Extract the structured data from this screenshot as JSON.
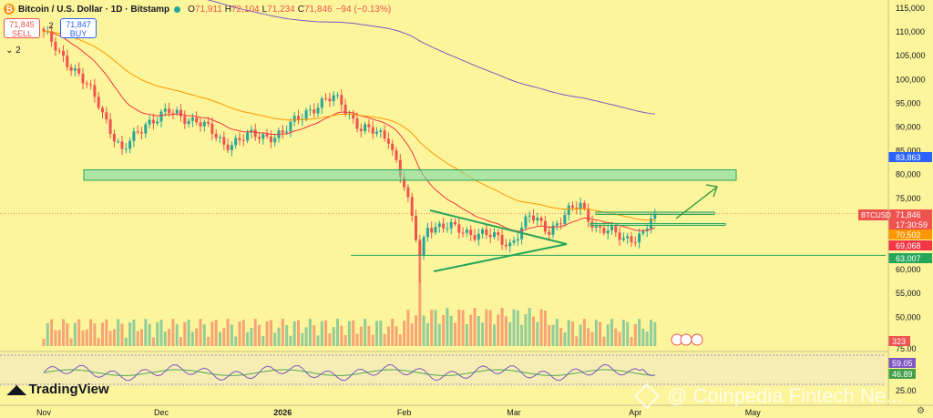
{
  "header": {
    "title": "Bitcoin / U.S. Dollar · 1D · Bitstamp",
    "open_label": "O",
    "open": "71,911",
    "high_label": "H",
    "high": "72,104",
    "low_label": "L",
    "low": "71,234",
    "close_label": "C",
    "close": "71,846",
    "change": "−94 (−0.13%)"
  },
  "trade": {
    "sell_price": "71,845",
    "sell_label": "SELL",
    "buy_price": "71,847",
    "buy_label": "BUY",
    "spread": "2",
    "collapse_count": "2"
  },
  "branding": {
    "logo_text": "TradingView",
    "watermark": "@ Coinpedia Fintech Ne..."
  },
  "colors": {
    "background": "#fdf59b",
    "up": "#26a69a",
    "down": "#ef5350",
    "ema_fast": "#f23645",
    "ema_mid": "#ff9800",
    "sma_long": "#7e57c2",
    "zone": "#a5e6bf",
    "zone_border": "#26a65b"
  },
  "chart_data": [
    {
      "type": "candlestick",
      "symbol": "BTCUSD",
      "y_axis_ticks": [
        "115,000",
        "110,000",
        "105,000",
        "100,000",
        "95,000",
        "90,000",
        "85,000",
        "80,000",
        "75,000",
        "70,000",
        "65,000",
        "60,000",
        "55,000",
        "50,000"
      ],
      "ylim": [
        50000,
        115000
      ],
      "x_axis_ticks": [
        "Nov",
        "Dec",
        "2026",
        "Feb",
        "Mar",
        "Apr",
        "May"
      ],
      "waypoints": [
        {
          "x": "Nov 1",
          "y": 109500
        },
        {
          "x": "Nov 8",
          "y": 103000
        },
        {
          "x": "Nov 15",
          "y": 95000
        },
        {
          "x": "Nov 21",
          "y": 84500
        },
        {
          "x": "Nov 27",
          "y": 91000
        },
        {
          "x": "Dec 3",
          "y": 93000
        },
        {
          "x": "Dec 10",
          "y": 91500
        },
        {
          "x": "Dec 17",
          "y": 86500
        },
        {
          "x": "Dec 24",
          "y": 88000
        },
        {
          "x": "Jan 1",
          "y": 88500
        },
        {
          "x": "Jan 7",
          "y": 93500
        },
        {
          "x": "Jan 14",
          "y": 96000
        },
        {
          "x": "Jan 16",
          "y": 95200
        },
        {
          "x": "Jan 21",
          "y": 89500
        },
        {
          "x": "Jan 28",
          "y": 88000
        },
        {
          "x": "Feb 1",
          "y": 77500
        },
        {
          "x": "Feb 5",
          "y": 63000
        },
        {
          "x": "Feb 7",
          "y": 69500
        },
        {
          "x": "Feb 14",
          "y": 68500
        },
        {
          "x": "Feb 21",
          "y": 67500
        },
        {
          "x": "Feb 28",
          "y": 65500
        },
        {
          "x": "Mar 5",
          "y": 71000
        },
        {
          "x": "Mar 10",
          "y": 68500
        },
        {
          "x": "Mar 15",
          "y": 72000
        },
        {
          "x": "Mar 18",
          "y": 73500
        },
        {
          "x": "Mar 22",
          "y": 69000
        },
        {
          "x": "Mar 29",
          "y": 66500
        },
        {
          "x": "Apr 3",
          "y": 67500
        },
        {
          "x": "Apr 6",
          "y": 71846
        }
      ],
      "indicator_labels": [
        {
          "value": "83,863",
          "color": "#2962ff"
        },
        {
          "value": "71,846",
          "sub": "17:30:59",
          "color": "#ef5350"
        },
        {
          "value": "70,502",
          "color": "#ff9800"
        },
        {
          "value": "69,068",
          "color": "#f23645"
        },
        {
          "value": "63,007",
          "color": "#26a65b"
        }
      ],
      "price_label": "BTCUSD",
      "levels": {
        "upper_zone": [
          78800,
          81000
        ],
        "resistance": [
          71600,
          72100
        ],
        "support": [
          69300,
          69700
        ],
        "horizontal": 63007
      },
      "grid": false
    },
    {
      "type": "bar",
      "name": "Volume",
      "label": "323",
      "ylim_ticks": [
        "75.00"
      ]
    },
    {
      "type": "line",
      "name": "RSI",
      "values_label": [
        "59.05",
        "46.89"
      ],
      "y_axis_ticks": [
        "75.00",
        "25.00"
      ]
    }
  ]
}
